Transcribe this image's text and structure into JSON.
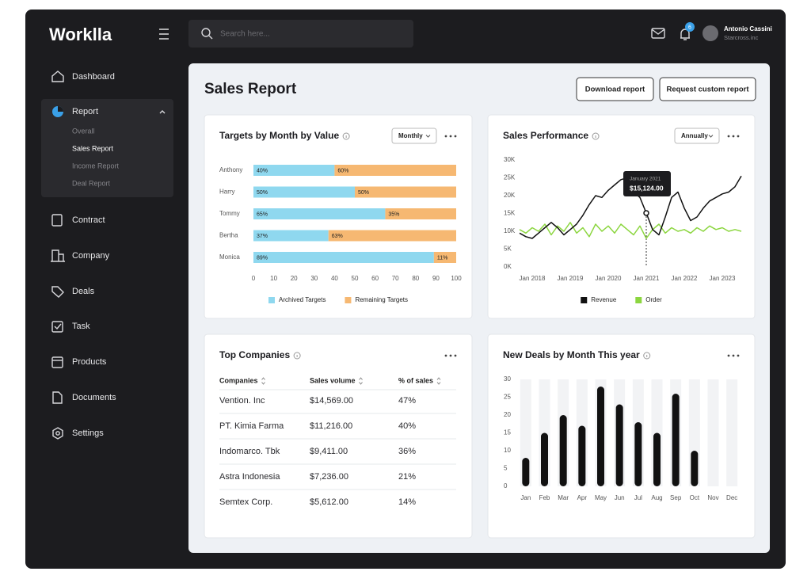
{
  "brand": "Worklla",
  "header": {
    "search_placeholder": "Search here...",
    "notification_count": 6,
    "user_name": "Antonio Cassini",
    "user_company": "Starcross.inc"
  },
  "nav": [
    "Dashboard",
    "Report",
    "Contract",
    "Company",
    "Deals",
    "Task",
    "Products",
    "Documents",
    "Settings"
  ],
  "report_submenu": [
    "Overall",
    "Sales Report",
    "Income Report",
    "Deal Report"
  ],
  "page": {
    "title": "Sales Report",
    "buttons": [
      "Download report",
      "Request custom report"
    ]
  },
  "chart_data": [
    {
      "type": "bar",
      "orientation": "horizontal",
      "stacked": true,
      "title": "Targets by Month by Value",
      "dropdown": "Monthly",
      "categories": [
        "Anthony",
        "Harry",
        "Tommy",
        "Bertha",
        "Monica"
      ],
      "series": [
        {
          "name": "Archived Targets",
          "color": "#8fd8ef",
          "values": [
            40,
            50,
            65,
            37,
            89
          ],
          "value_labels": [
            "40%",
            "50%",
            "65%",
            "37%",
            "89%"
          ]
        },
        {
          "name": "Remaining Targets",
          "color": "#f6b872",
          "values": [
            60,
            50,
            35,
            63,
            11
          ],
          "value_labels": [
            "60%",
            "50%",
            "35%",
            "63%",
            "11%"
          ]
        }
      ],
      "xlim": [
        0,
        100
      ],
      "xticks": [
        0,
        10,
        20,
        30,
        40,
        50,
        60,
        70,
        80,
        90,
        100
      ],
      "legend": "bottom"
    },
    {
      "type": "line",
      "title": "Sales Performance",
      "dropdown": "Annually",
      "categories": [
        null,
        null,
        "Jan 2018",
        null,
        null,
        null,
        null,
        null,
        "Jan 2019",
        null,
        null,
        null,
        null,
        null,
        "Jan 2020",
        null,
        null,
        null,
        null,
        null,
        "Jan 2021",
        null,
        null,
        null,
        null,
        null,
        "Jan 2022",
        null,
        null,
        null,
        null,
        null,
        "Jan 2023",
        null,
        null,
        null
      ],
      "series": [
        {
          "name": "Revenue",
          "color": "#111111",
          "values": [
            9500,
            8500,
            8000,
            9500,
            11000,
            12500,
            11000,
            9000,
            10500,
            12000,
            14500,
            17500,
            20000,
            19500,
            21500,
            23000,
            24500,
            25000,
            21000,
            19500,
            15124,
            10500,
            9000,
            14000,
            19500,
            21000,
            16500,
            13000,
            14000,
            16500,
            18500,
            19500,
            20500,
            21000,
            22500,
            25500
          ]
        },
        {
          "name": "Order",
          "color": "#8cd640",
          "values": [
            10500,
            9500,
            11000,
            10000,
            12000,
            9000,
            11500,
            10000,
            12500,
            9500,
            11000,
            8500,
            12000,
            10000,
            11500,
            9500,
            12000,
            10500,
            9000,
            11500,
            8000,
            10500,
            12000,
            9500,
            11000,
            10000,
            10500,
            9500,
            11000,
            10000,
            11500,
            10500,
            11000,
            10000,
            10500,
            10000
          ]
        }
      ],
      "ylim": [
        0,
        30000
      ],
      "yticks": [
        {
          "value": 0,
          "label": "0K"
        },
        {
          "value": 5000,
          "label": "5K"
        },
        {
          "value": 10000,
          "label": "10K"
        },
        {
          "value": 15000,
          "label": "15K"
        },
        {
          "value": 20000,
          "label": "20K"
        },
        {
          "value": 25000,
          "label": "25K"
        },
        {
          "value": 30000,
          "label": "30K"
        }
      ],
      "annotations": [
        "January 2021",
        "$15,124.00"
      ],
      "legend": "bottom"
    },
    {
      "type": "bar",
      "title": "New Deals by Month This year",
      "categories": [
        "Jan",
        "Feb",
        "Mar",
        "Apr",
        "May",
        "Jun",
        "Jul",
        "Aug",
        "Sep",
        "Oct",
        "Nov",
        "Dec"
      ],
      "values": [
        8,
        15,
        20,
        17,
        28,
        23,
        18,
        15,
        26,
        10,
        null,
        null
      ],
      "color": "#111111",
      "ylim": [
        0,
        30
      ],
      "yticks": [
        0,
        5,
        10,
        15,
        20,
        25,
        30
      ]
    }
  ],
  "table": {
    "title": "Top Companies",
    "columns": [
      "Companies",
      "Sales volume",
      "% of sales"
    ],
    "rows": [
      [
        "Vention. Inc",
        "$14,569.00",
        "47%"
      ],
      [
        "PT. Kimia Farma",
        "$11,216.00",
        "40%"
      ],
      [
        "Indomarco. Tbk",
        "$9,411.00",
        "36%"
      ],
      [
        "Astra Indonesia",
        "$7,236.00",
        "21%"
      ],
      [
        "Semtex Corp.",
        "$5,612.00",
        "14%"
      ]
    ]
  }
}
